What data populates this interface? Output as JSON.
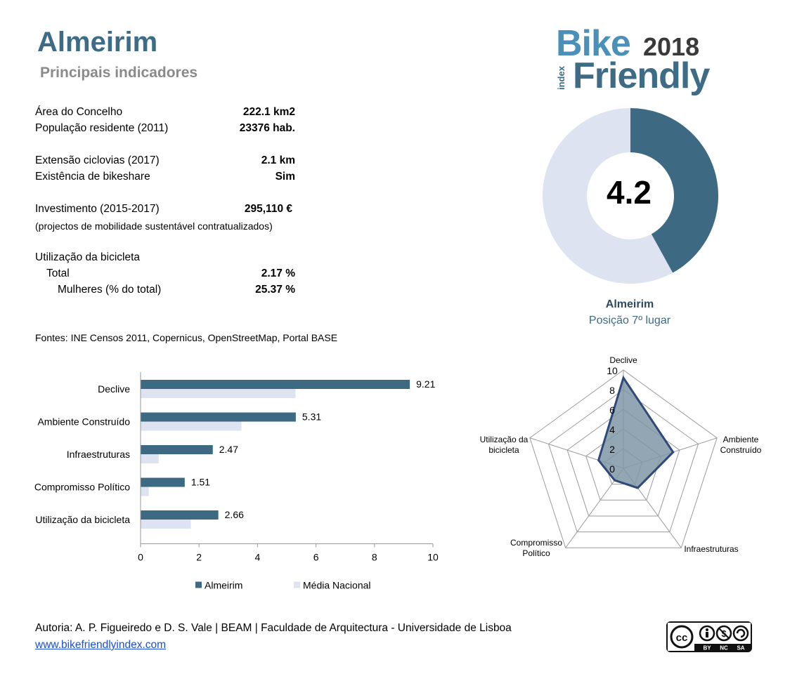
{
  "header": {
    "title": "Almeirim",
    "subtitle": "Principais indicadores"
  },
  "logo": {
    "word1": "Bike",
    "year": "2018",
    "word2": "Friendly",
    "index": "index"
  },
  "indicators": {
    "area_label": "Área do Concelho",
    "area_value": "222.1 km2",
    "pop_label": "População residente (2011)",
    "pop_value": "23376 hab.",
    "cycle_label": "Extensão ciclovias (2017)",
    "cycle_value": "2.1 km",
    "bikeshare_label": "Existência de bikeshare",
    "bikeshare_value": "Sim",
    "invest_label": "Investimento (2015-2017)",
    "invest_value": "295,110 €",
    "invest_note": "(projectos de mobilidade sustentável contratualizados)",
    "usage_label": "Utilização da bicicleta",
    "total_label": "Total",
    "total_value": "2.17 %",
    "women_label": "Mulheres (% do total)",
    "women_value": "25.37 %"
  },
  "sources": "Fontes: INE Censos 2011, Copernicus, OpenStreetMap,  Portal BASE",
  "score": {
    "value": "4.2",
    "municipality": "Almeirim",
    "position": "Posição 7º lugar"
  },
  "colors": {
    "primary": "#3d6a82",
    "light": "#dde3f0",
    "title": "#3e6b85"
  },
  "chart_data": [
    {
      "type": "pie",
      "values": [
        4.2,
        5.8
      ],
      "center_label": "4.2"
    },
    {
      "type": "bar",
      "orientation": "horizontal",
      "categories": [
        "Declive",
        "Ambiente Construído",
        "Infraestruturas",
        "Compromisso Político",
        "Utilização da bicicleta"
      ],
      "series": [
        {
          "name": "Almeirim",
          "values": [
            9.21,
            5.31,
            2.47,
            1.51,
            2.66
          ]
        },
        {
          "name": "Média Nacional",
          "values": [
            5.3,
            3.45,
            0.62,
            0.28,
            1.72
          ]
        }
      ],
      "data_labels": [
        "9.21",
        "5.31",
        "2.47",
        "1.51",
        "2.66"
      ],
      "xlim": [
        0,
        10
      ],
      "xticks": [
        "0",
        "2",
        "4",
        "6",
        "8",
        "10"
      ],
      "legend": "bottom"
    },
    {
      "type": "radar",
      "axes": [
        "Declive",
        "Ambiente Construído",
        "Infraestruturas",
        "Compromisso Político",
        "Utilização da bicicleta"
      ],
      "axis_labels": [
        [
          "Declive"
        ],
        [
          "Ambiente",
          "Construído"
        ],
        [
          "Infraestruturas"
        ],
        [
          "Compromisso",
          "Político"
        ],
        [
          "Utilização da",
          "bicicleta"
        ]
      ],
      "values": [
        9.21,
        5.31,
        2.47,
        1.51,
        2.66
      ],
      "rlim": [
        0,
        10
      ],
      "ticks": [
        "0",
        "2",
        "4",
        "6",
        "8",
        "10"
      ]
    }
  ],
  "footer": {
    "authors": "Autoria: A. P. Figueiredo e D. S. Vale | BEAM | Faculdade de Arquitectura - Universidade de Lisboa",
    "link": "www.bikefriendlyindex.com"
  },
  "license": {
    "cc": "cc",
    "by": "BY",
    "nc": "NC",
    "sa": "SA"
  }
}
